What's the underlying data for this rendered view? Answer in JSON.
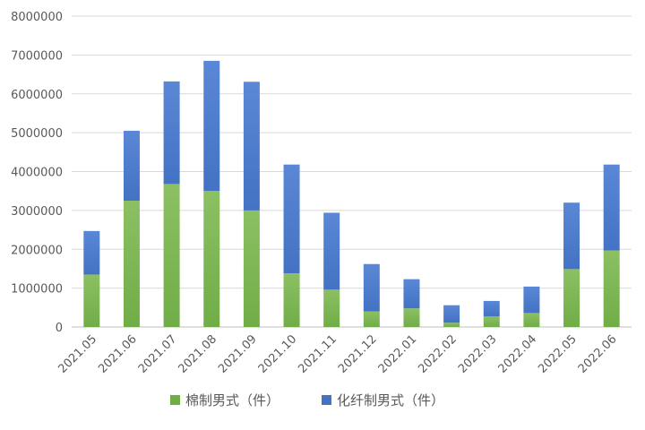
{
  "chart_data": {
    "type": "bar",
    "stacked": true,
    "categories": [
      "2021.05",
      "2021.06",
      "2021.07",
      "2021.08",
      "2021.09",
      "2021.10",
      "2021.11",
      "2021.12",
      "2022.01",
      "2022.02",
      "2022.03",
      "2022.04",
      "2022.05",
      "2022.06"
    ],
    "series": [
      {
        "name": "棉制男式（件）",
        "color": "#70ad47",
        "values": [
          1350000,
          3250000,
          3680000,
          3500000,
          3000000,
          1380000,
          960000,
          400000,
          480000,
          110000,
          270000,
          360000,
          1490000,
          1970000
        ]
      },
      {
        "name": "化纤制男式（件）",
        "color": "#4472c4",
        "values": [
          1120000,
          1800000,
          2640000,
          3350000,
          3310000,
          2800000,
          1980000,
          1220000,
          750000,
          450000,
          400000,
          680000,
          1710000,
          2210000
        ]
      }
    ],
    "yticks": [
      "0",
      "1000000",
      "2000000",
      "3000000",
      "4000000",
      "5000000",
      "6000000",
      "7000000",
      "8000000"
    ],
    "ylim": [
      0,
      8000000
    ],
    "grid": true,
    "legend_position": "bottom",
    "title": "",
    "xlabel": "",
    "ylabel": ""
  }
}
